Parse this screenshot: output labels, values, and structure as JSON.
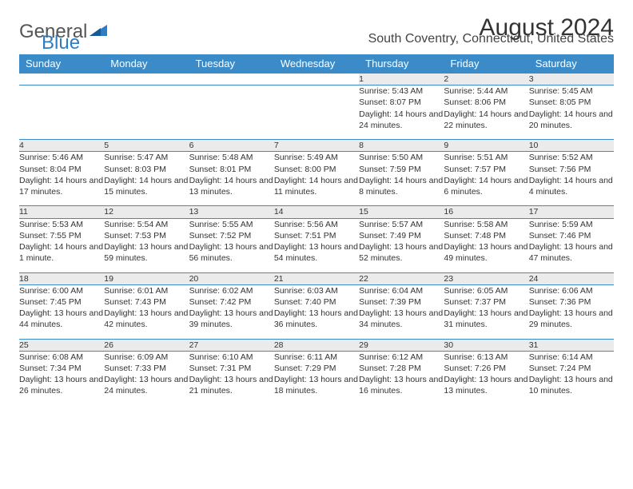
{
  "brand": {
    "part1": "General",
    "part2": "Blue"
  },
  "title": "August 2024",
  "location": "South Coventry, Connecticut, United States",
  "colors": {
    "header_bg": "#3b8bc9",
    "header_text": "#ffffff",
    "daynum_bg": "#ebebeb",
    "border": "#3b8bc9",
    "brand_gray": "#555555",
    "brand_blue": "#2e7cc2"
  },
  "weekdays": [
    "Sunday",
    "Monday",
    "Tuesday",
    "Wednesday",
    "Thursday",
    "Friday",
    "Saturday"
  ],
  "weeks": [
    [
      null,
      null,
      null,
      null,
      {
        "n": "1",
        "sr": "5:43 AM",
        "ss": "8:07 PM",
        "dl": "14 hours and 24 minutes."
      },
      {
        "n": "2",
        "sr": "5:44 AM",
        "ss": "8:06 PM",
        "dl": "14 hours and 22 minutes."
      },
      {
        "n": "3",
        "sr": "5:45 AM",
        "ss": "8:05 PM",
        "dl": "14 hours and 20 minutes."
      }
    ],
    [
      {
        "n": "4",
        "sr": "5:46 AM",
        "ss": "8:04 PM",
        "dl": "14 hours and 17 minutes."
      },
      {
        "n": "5",
        "sr": "5:47 AM",
        "ss": "8:03 PM",
        "dl": "14 hours and 15 minutes."
      },
      {
        "n": "6",
        "sr": "5:48 AM",
        "ss": "8:01 PM",
        "dl": "14 hours and 13 minutes."
      },
      {
        "n": "7",
        "sr": "5:49 AM",
        "ss": "8:00 PM",
        "dl": "14 hours and 11 minutes."
      },
      {
        "n": "8",
        "sr": "5:50 AM",
        "ss": "7:59 PM",
        "dl": "14 hours and 8 minutes."
      },
      {
        "n": "9",
        "sr": "5:51 AM",
        "ss": "7:57 PM",
        "dl": "14 hours and 6 minutes."
      },
      {
        "n": "10",
        "sr": "5:52 AM",
        "ss": "7:56 PM",
        "dl": "14 hours and 4 minutes."
      }
    ],
    [
      {
        "n": "11",
        "sr": "5:53 AM",
        "ss": "7:55 PM",
        "dl": "14 hours and 1 minute."
      },
      {
        "n": "12",
        "sr": "5:54 AM",
        "ss": "7:53 PM",
        "dl": "13 hours and 59 minutes."
      },
      {
        "n": "13",
        "sr": "5:55 AM",
        "ss": "7:52 PM",
        "dl": "13 hours and 56 minutes."
      },
      {
        "n": "14",
        "sr": "5:56 AM",
        "ss": "7:51 PM",
        "dl": "13 hours and 54 minutes."
      },
      {
        "n": "15",
        "sr": "5:57 AM",
        "ss": "7:49 PM",
        "dl": "13 hours and 52 minutes."
      },
      {
        "n": "16",
        "sr": "5:58 AM",
        "ss": "7:48 PM",
        "dl": "13 hours and 49 minutes."
      },
      {
        "n": "17",
        "sr": "5:59 AM",
        "ss": "7:46 PM",
        "dl": "13 hours and 47 minutes."
      }
    ],
    [
      {
        "n": "18",
        "sr": "6:00 AM",
        "ss": "7:45 PM",
        "dl": "13 hours and 44 minutes."
      },
      {
        "n": "19",
        "sr": "6:01 AM",
        "ss": "7:43 PM",
        "dl": "13 hours and 42 minutes."
      },
      {
        "n": "20",
        "sr": "6:02 AM",
        "ss": "7:42 PM",
        "dl": "13 hours and 39 minutes."
      },
      {
        "n": "21",
        "sr": "6:03 AM",
        "ss": "7:40 PM",
        "dl": "13 hours and 36 minutes."
      },
      {
        "n": "22",
        "sr": "6:04 AM",
        "ss": "7:39 PM",
        "dl": "13 hours and 34 minutes."
      },
      {
        "n": "23",
        "sr": "6:05 AM",
        "ss": "7:37 PM",
        "dl": "13 hours and 31 minutes."
      },
      {
        "n": "24",
        "sr": "6:06 AM",
        "ss": "7:36 PM",
        "dl": "13 hours and 29 minutes."
      }
    ],
    [
      {
        "n": "25",
        "sr": "6:08 AM",
        "ss": "7:34 PM",
        "dl": "13 hours and 26 minutes."
      },
      {
        "n": "26",
        "sr": "6:09 AM",
        "ss": "7:33 PM",
        "dl": "13 hours and 24 minutes."
      },
      {
        "n": "27",
        "sr": "6:10 AM",
        "ss": "7:31 PM",
        "dl": "13 hours and 21 minutes."
      },
      {
        "n": "28",
        "sr": "6:11 AM",
        "ss": "7:29 PM",
        "dl": "13 hours and 18 minutes."
      },
      {
        "n": "29",
        "sr": "6:12 AM",
        "ss": "7:28 PM",
        "dl": "13 hours and 16 minutes."
      },
      {
        "n": "30",
        "sr": "6:13 AM",
        "ss": "7:26 PM",
        "dl": "13 hours and 13 minutes."
      },
      {
        "n": "31",
        "sr": "6:14 AM",
        "ss": "7:24 PM",
        "dl": "13 hours and 10 minutes."
      }
    ]
  ],
  "labels": {
    "sunrise": "Sunrise:",
    "sunset": "Sunset:",
    "daylight": "Daylight:"
  }
}
